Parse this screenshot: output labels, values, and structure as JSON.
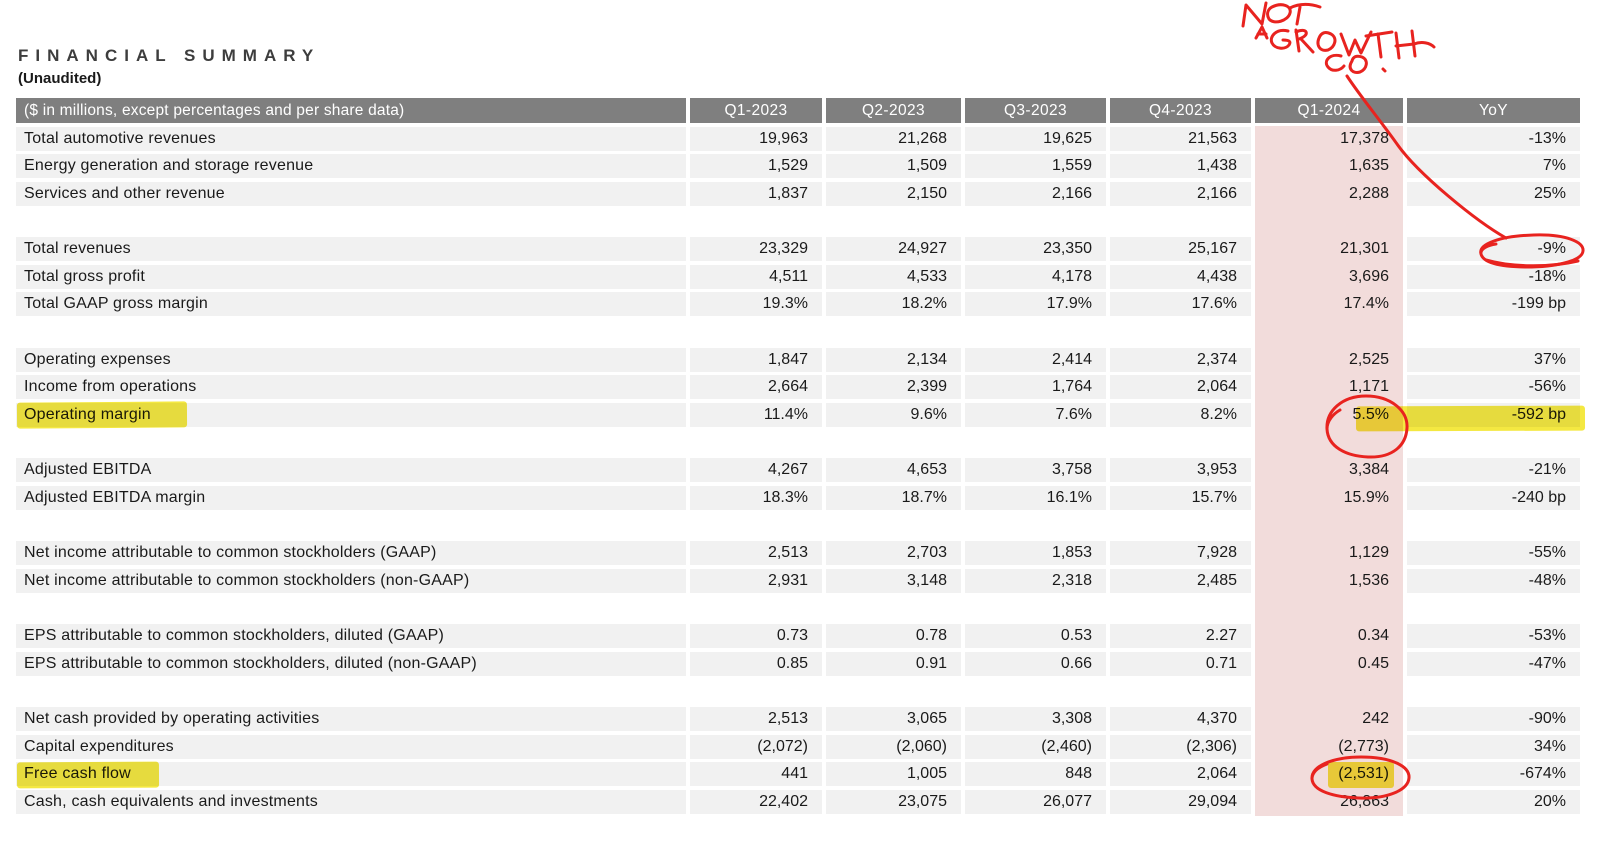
{
  "title": "FINANCIAL SUMMARY",
  "subtitle": "(Unaudited)",
  "table": {
    "header": {
      "label": "($ in millions, except percentages and per share data)",
      "columns": [
        "Q1-2023",
        "Q2-2023",
        "Q3-2023",
        "Q4-2023",
        "Q1-2024",
        "YoY"
      ],
      "highlighted_column": "Q1-2024"
    },
    "sections": [
      {
        "rows": [
          {
            "label": "Total automotive revenues",
            "values": [
              "19,963",
              "21,268",
              "19,625",
              "21,563",
              "17,378",
              "-13%"
            ]
          },
          {
            "label": "Energy generation and storage revenue",
            "values": [
              "1,529",
              "1,509",
              "1,559",
              "1,438",
              "1,635",
              "7%"
            ]
          },
          {
            "label": "Services and other revenue",
            "values": [
              "1,837",
              "2,150",
              "2,166",
              "2,166",
              "2,288",
              "25%"
            ]
          }
        ]
      },
      {
        "rows": [
          {
            "label": "Total revenues",
            "values": [
              "23,329",
              "24,927",
              "23,350",
              "25,167",
              "21,301",
              "-9%"
            ]
          },
          {
            "label": "Total gross profit",
            "values": [
              "4,511",
              "4,533",
              "4,178",
              "4,438",
              "3,696",
              "-18%"
            ]
          },
          {
            "label": "Total GAAP gross margin",
            "values": [
              "19.3%",
              "18.2%",
              "17.9%",
              "17.6%",
              "17.4%",
              "-199 bp"
            ]
          }
        ]
      },
      {
        "rows": [
          {
            "label": "Operating expenses",
            "values": [
              "1,847",
              "2,134",
              "2,414",
              "2,374",
              "2,525",
              "37%"
            ]
          },
          {
            "label": "Income from operations",
            "values": [
              "2,664",
              "2,399",
              "1,764",
              "2,064",
              "1,171",
              "-56%"
            ]
          },
          {
            "label": "Operating margin",
            "values": [
              "11.4%",
              "9.6%",
              "7.6%",
              "8.2%",
              "5.5%",
              "-592 bp"
            ]
          }
        ]
      },
      {
        "rows": [
          {
            "label": "Adjusted EBITDA",
            "values": [
              "4,267",
              "4,653",
              "3,758",
              "3,953",
              "3,384",
              "-21%"
            ]
          },
          {
            "label": "Adjusted EBITDA margin",
            "values": [
              "18.3%",
              "18.7%",
              "16.1%",
              "15.7%",
              "15.9%",
              "-240 bp"
            ]
          }
        ]
      },
      {
        "rows": [
          {
            "label": "Net income attributable to common stockholders (GAAP)",
            "values": [
              "2,513",
              "2,703",
              "1,853",
              "7,928",
              "1,129",
              "-55%"
            ]
          },
          {
            "label": "Net income attributable to common stockholders (non-GAAP)",
            "values": [
              "2,931",
              "3,148",
              "2,318",
              "2,485",
              "1,536",
              "-48%"
            ]
          }
        ]
      },
      {
        "rows": [
          {
            "label": "EPS attributable to common stockholders, diluted (GAAP)",
            "values": [
              "0.73",
              "0.78",
              "0.53",
              "2.27",
              "0.34",
              "-53%"
            ]
          },
          {
            "label": "EPS attributable to common stockholders, diluted (non-GAAP)",
            "values": [
              "0.85",
              "0.91",
              "0.66",
              "0.71",
              "0.45",
              "-47%"
            ]
          }
        ]
      },
      {
        "rows": [
          {
            "label": "Net cash provided by operating activities",
            "values": [
              "2,513",
              "3,065",
              "3,308",
              "4,370",
              "242",
              "-90%"
            ]
          },
          {
            "label": "Capital expenditures",
            "values": [
              "(2,072)",
              "(2,060)",
              "(2,460)",
              "(2,306)",
              "(2,773)",
              "34%"
            ]
          },
          {
            "label": "Free cash flow",
            "values": [
              "441",
              "1,005",
              "848",
              "2,064",
              "(2,531)",
              "-674%"
            ]
          },
          {
            "label": "Cash, cash equivalents and investments",
            "values": [
              "22,402",
              "23,075",
              "26,077",
              "29,094",
              "26,863",
              "20%"
            ]
          }
        ]
      }
    ]
  },
  "annotations": {
    "handwritten_note": "NOT A GROWTH CO.",
    "ink_color": "#e8231f",
    "marker_color": "#f2e41f",
    "circled_values": [
      "-9%",
      "5.5%",
      "(2,531)"
    ],
    "marker_highlighted": [
      "Operating margin",
      "5.5%",
      "-592 bp",
      "Free cash flow",
      "(2,531)"
    ]
  },
  "colors": {
    "header_bg": "#7f7f7f",
    "row_bg": "#f1f1f1",
    "q1_2024_column_bg": "#f2dcdb",
    "text": "#1a1a1a"
  }
}
